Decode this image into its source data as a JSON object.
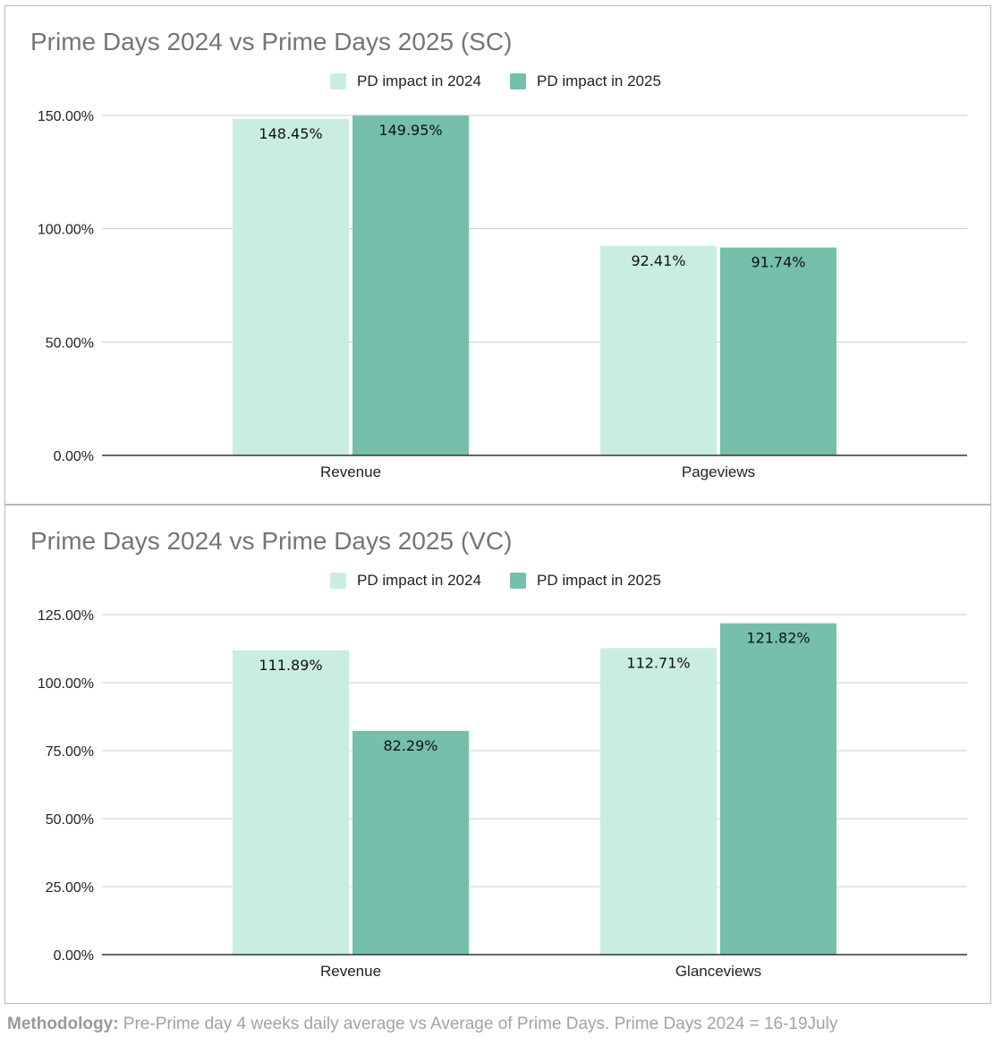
{
  "colors": {
    "series_2024": "#c9ece3",
    "series_2025": "#76bfaa",
    "grid": "#cccccc",
    "axis": "#333333"
  },
  "chart_data": [
    {
      "type": "bar",
      "title": "Prime Days 2024 vs Prime Days 2025 (SC)",
      "categories": [
        "Revenue",
        "Pageviews"
      ],
      "series": [
        {
          "name": "PD impact in 2024",
          "values": [
            148.45,
            92.41
          ],
          "labels": [
            "148.45%",
            "92.41%"
          ]
        },
        {
          "name": "PD impact in 2025",
          "values": [
            149.95,
            91.74
          ],
          "labels": [
            "149.95%",
            "91.74%"
          ]
        }
      ],
      "ylim": [
        0,
        150
      ],
      "yticks": [
        0,
        50,
        100,
        150
      ],
      "ytick_labels": [
        "0.00%",
        "50.00%",
        "100.00%",
        "150.00%"
      ],
      "grid": true,
      "legend": "top-center"
    },
    {
      "type": "bar",
      "title": "Prime Days 2024 vs Prime Days 2025 (VC)",
      "categories": [
        "Revenue",
        "Glanceviews"
      ],
      "series": [
        {
          "name": "PD impact in 2024",
          "values": [
            111.89,
            112.71
          ],
          "labels": [
            "111.89%",
            "112.71%"
          ]
        },
        {
          "name": "PD impact in 2025",
          "values": [
            82.29,
            121.82
          ],
          "labels": [
            "82.29%",
            "121.82%"
          ]
        }
      ],
      "ylim": [
        0,
        125
      ],
      "yticks": [
        0,
        25,
        50,
        75,
        100,
        125
      ],
      "ytick_labels": [
        "0.00%",
        "25.00%",
        "50.00%",
        "75.00%",
        "100.00%",
        "125.00%"
      ],
      "grid": true,
      "legend": "top-center"
    }
  ],
  "footer": {
    "label": "Methodology:",
    "text": " Pre-Prime day 4 weeks daily average vs Average of Prime Days. Prime Days 2024 = 16-19July"
  }
}
